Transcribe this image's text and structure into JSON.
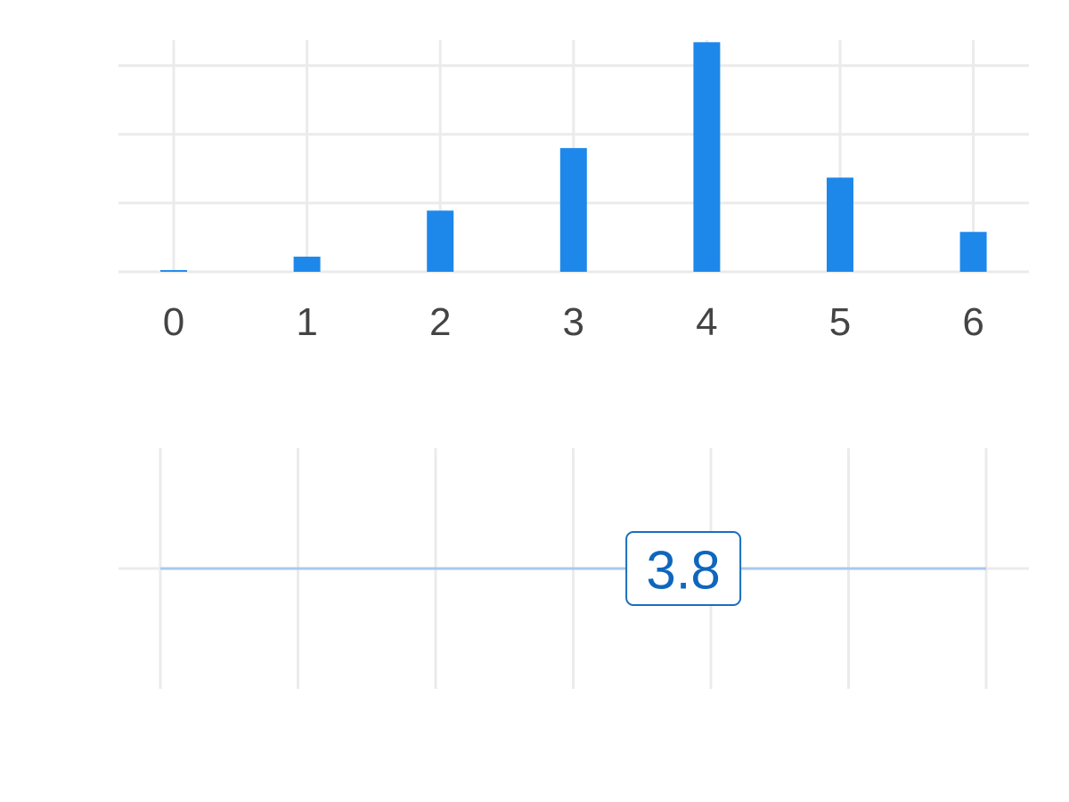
{
  "colors": {
    "bar": "#1e88ea",
    "grid": "#ebebeb",
    "tick_text": "#444444",
    "range_line": "#a8c8ee",
    "marker_border": "#1a6ec0",
    "marker_text": "#0f66bd"
  },
  "chart_data": [
    {
      "type": "bar",
      "categories": [
        "0",
        "1",
        "2",
        "3",
        "4",
        "5",
        "6"
      ],
      "x": [
        0,
        1,
        2,
        3,
        4,
        5,
        6
      ],
      "values": [
        0.0025,
        0.022,
        0.089,
        0.18,
        0.334,
        0.137,
        0.058
      ],
      "ylim": [
        0,
        0.35
      ],
      "grid": true,
      "y_tick_labels_shown": false
    },
    {
      "type": "line",
      "x": [
        0,
        6
      ],
      "xlim": [
        0,
        6
      ],
      "marker": {
        "value": 3.8,
        "label": "3.8"
      },
      "grid": true
    }
  ]
}
